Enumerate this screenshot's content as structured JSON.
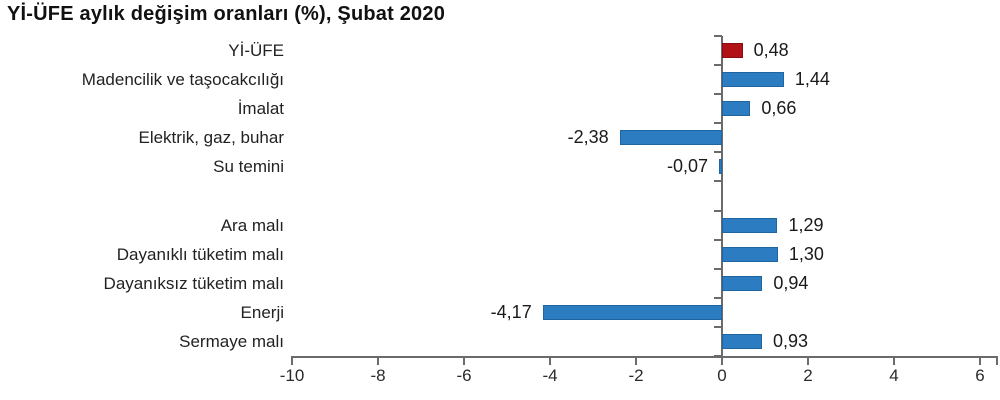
{
  "chart_data": {
    "type": "bar",
    "orientation": "horizontal",
    "title": "Yİ-ÜFE aylık değişim oranları (%), Şubat 2020",
    "categories": [
      "Yİ-ÜFE",
      "Madencilik ve taşocakcılığı",
      "İmalat",
      "Elektrik, gaz, buhar",
      "Su temini",
      "Ara malı",
      "Dayanıklı tüketim malı",
      "Dayanıksız tüketim malı",
      "Enerji",
      "Sermaye malı"
    ],
    "values": [
      0.48,
      1.44,
      0.66,
      -2.38,
      -0.07,
      1.29,
      1.3,
      0.94,
      -4.17,
      0.93
    ],
    "value_labels": [
      "0,48",
      "1,44",
      "0,66",
      "-2,38",
      "-0,07",
      "1,29",
      "1,30",
      "0,94",
      "-4,17",
      "0,93"
    ],
    "group_break_after_index": 4,
    "highlight_index": 0,
    "x_ticks": [
      -10,
      -8,
      -6,
      -4,
      -2,
      0,
      2,
      4,
      6
    ],
    "x_tick_labels": [
      "-10",
      "-8",
      "-6",
      "-4",
      "-2",
      "0",
      "2",
      "4",
      "6"
    ],
    "xlim": [
      -10,
      6.4
    ],
    "grid": false,
    "legend": "none",
    "colors": {
      "bar_fill": "#2b7cc0",
      "bar_border": "#1f65a0",
      "highlight_fill": "#b01218",
      "highlight_border": "#870d11",
      "axis": "#6b6b6b",
      "text": "#222222"
    }
  }
}
